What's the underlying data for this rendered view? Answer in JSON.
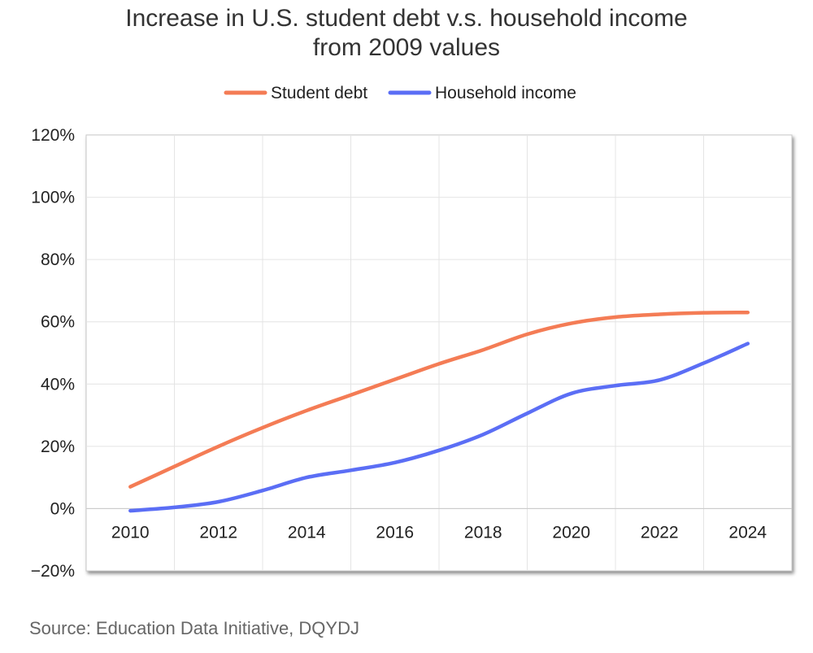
{
  "chart_data": {
    "type": "line",
    "title_line1": "Increase in U.S. student debt v.s. household income",
    "title_line2": "from 2009 values",
    "x": [
      2010,
      2011,
      2012,
      2013,
      2014,
      2015,
      2016,
      2017,
      2018,
      2019,
      2020,
      2021,
      2022,
      2023,
      2024
    ],
    "x_tick_labels": [
      "2010",
      "2012",
      "2014",
      "2016",
      "2018",
      "2020",
      "2022",
      "2024"
    ],
    "y_tick_labels": [
      "120%",
      "100%",
      "80%",
      "60%",
      "40%",
      "20%",
      "0%",
      "−20%"
    ],
    "ylim": [
      -20,
      120
    ],
    "xlim": [
      2009,
      2025
    ],
    "grid": true,
    "legend_position": "top-center",
    "series": [
      {
        "name": "Student debt",
        "color": "#f47c55",
        "values": [
          7,
          13.5,
          20,
          26,
          31.5,
          36.5,
          41.5,
          46.5,
          51,
          56,
          59.5,
          61.5,
          62.4,
          62.9,
          63
        ]
      },
      {
        "name": "Household income",
        "color": "#5b6ef5",
        "values": [
          -0.7,
          0.4,
          2.2,
          5.8,
          10,
          12.3,
          14.8,
          18.7,
          23.8,
          30.6,
          37,
          39.5,
          41.3,
          46.7,
          53
        ]
      }
    ]
  },
  "source": "Source: Education Data Initiative, DQYDJ"
}
